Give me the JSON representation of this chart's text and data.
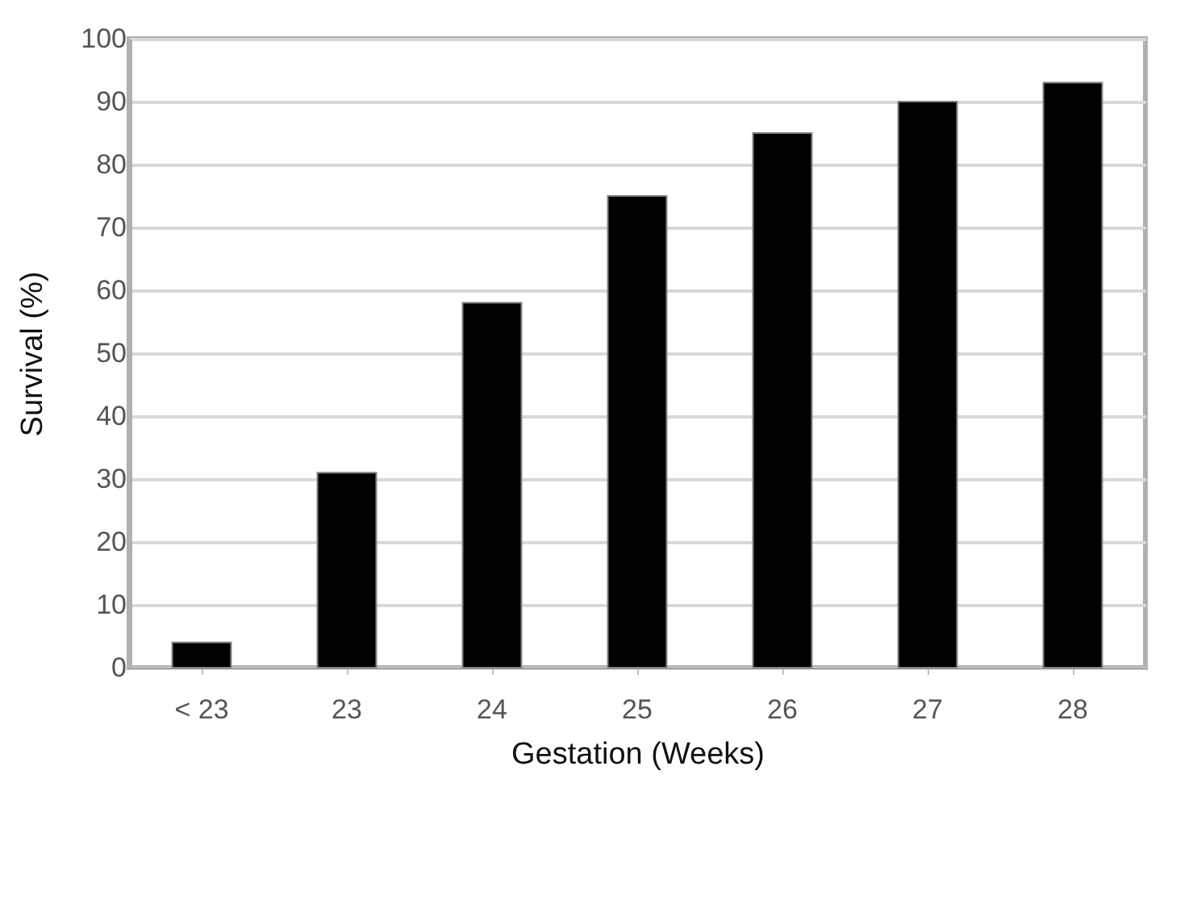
{
  "chart_data": {
    "type": "bar",
    "xlabel": "Gestation (Weeks)",
    "ylabel": "Survival (%)",
    "categories": [
      "< 23",
      "23",
      "24",
      "25",
      "26",
      "27",
      "28"
    ],
    "values": [
      4,
      31,
      58,
      75,
      85,
      90,
      93
    ],
    "color": "#000000",
    "ylim": [
      0,
      100
    ],
    "yticks": [
      0,
      10,
      20,
      30,
      40,
      50,
      60,
      70,
      80,
      90,
      100
    ],
    "grid": "y"
  }
}
